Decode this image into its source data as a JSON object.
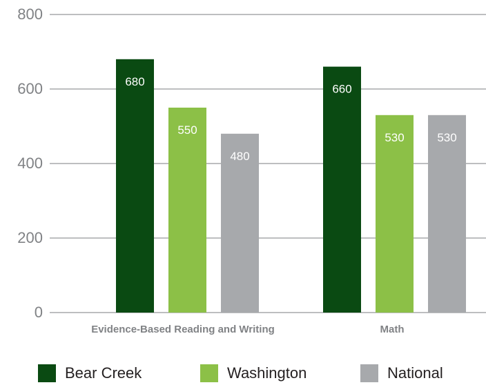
{
  "chart_data": {
    "type": "bar",
    "categories": [
      "Evidence-Based Reading and Writing",
      "Math"
    ],
    "series": [
      {
        "name": "Bear Creek",
        "values": [
          680,
          660
        ],
        "color": "#0a4a12"
      },
      {
        "name": "Washington",
        "values": [
          550,
          530
        ],
        "color": "#8cc047"
      },
      {
        "name": "National",
        "values": [
          480,
          530
        ],
        "color": "#a7a9ac"
      }
    ],
    "y_ticks": [
      "0",
      "200",
      "400",
      "600",
      "800"
    ],
    "ylim": [
      0,
      800
    ],
    "grid": true,
    "legend_position": "bottom",
    "data_labels": [
      [
        "680",
        "660"
      ],
      [
        "550",
        "530"
      ],
      [
        "480",
        "530"
      ]
    ]
  }
}
